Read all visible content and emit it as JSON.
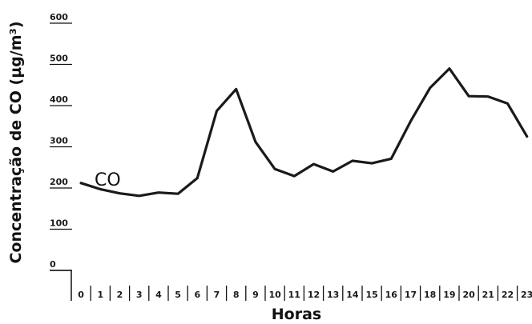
{
  "chart_data": {
    "type": "line",
    "title": "",
    "xlabel": "Horas",
    "ylabel": "Concentração de CO (µg/m³)",
    "categories": [
      "0",
      "1",
      "2",
      "3",
      "4",
      "5",
      "6",
      "7",
      "8",
      "9",
      "10",
      "11",
      "12",
      "13",
      "14",
      "15",
      "16",
      "17",
      "18",
      "19",
      "20",
      "21",
      "22",
      "23"
    ],
    "y_ticks": [
      "600",
      "500",
      "400",
      "300",
      "200",
      "100",
      "0"
    ],
    "ylim": [
      0,
      600
    ],
    "grid": false,
    "series": [
      {
        "name": "CO",
        "color": "#1a1a1a",
        "values": [
          212,
          197,
          187,
          181,
          189,
          186,
          224,
          387,
          440,
          312,
          246,
          229,
          258,
          240,
          266,
          260,
          271,
          362,
          443,
          490,
          423,
          422,
          405,
          325
        ]
      }
    ]
  }
}
